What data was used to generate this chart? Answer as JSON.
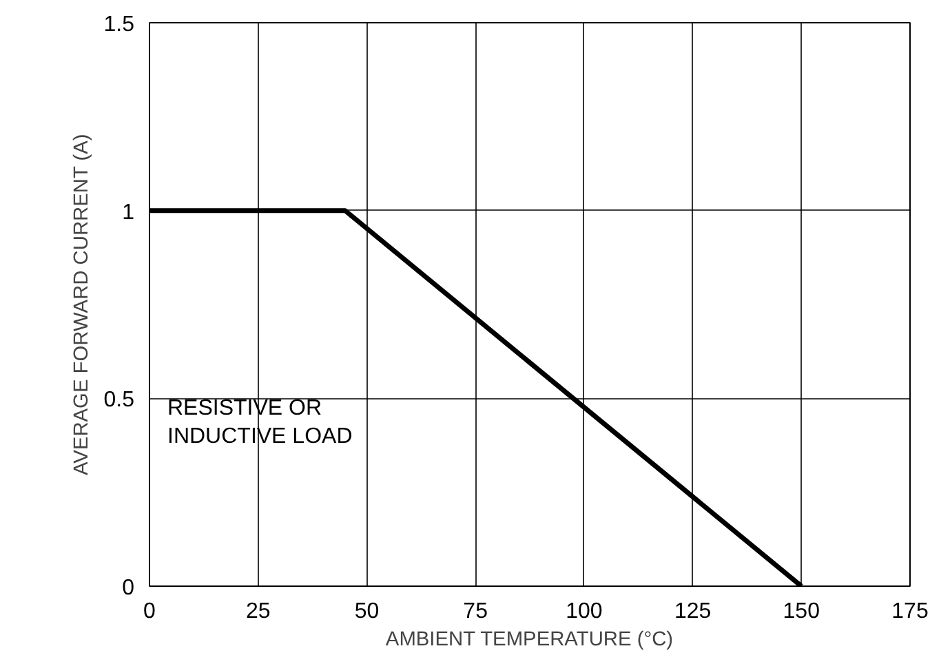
{
  "chart_data": {
    "type": "line",
    "xlabel": "AMBIENT TEMPERATURE (°C)",
    "ylabel": "AVERAGE FORWARD CURRENT (A)",
    "x": [
      0,
      45,
      150
    ],
    "values": [
      1,
      1,
      0
    ],
    "color": "#000000",
    "xlim": [
      0,
      175
    ],
    "xticks": [
      0,
      25,
      50,
      75,
      100,
      125,
      150,
      175
    ],
    "ylim": [
      0,
      1.5
    ],
    "yticks": [
      0,
      0.5,
      1,
      1.5
    ],
    "grid": true,
    "annotations": [
      "RESISTIVE OR\nINDUCTIVE LOAD"
    ]
  }
}
